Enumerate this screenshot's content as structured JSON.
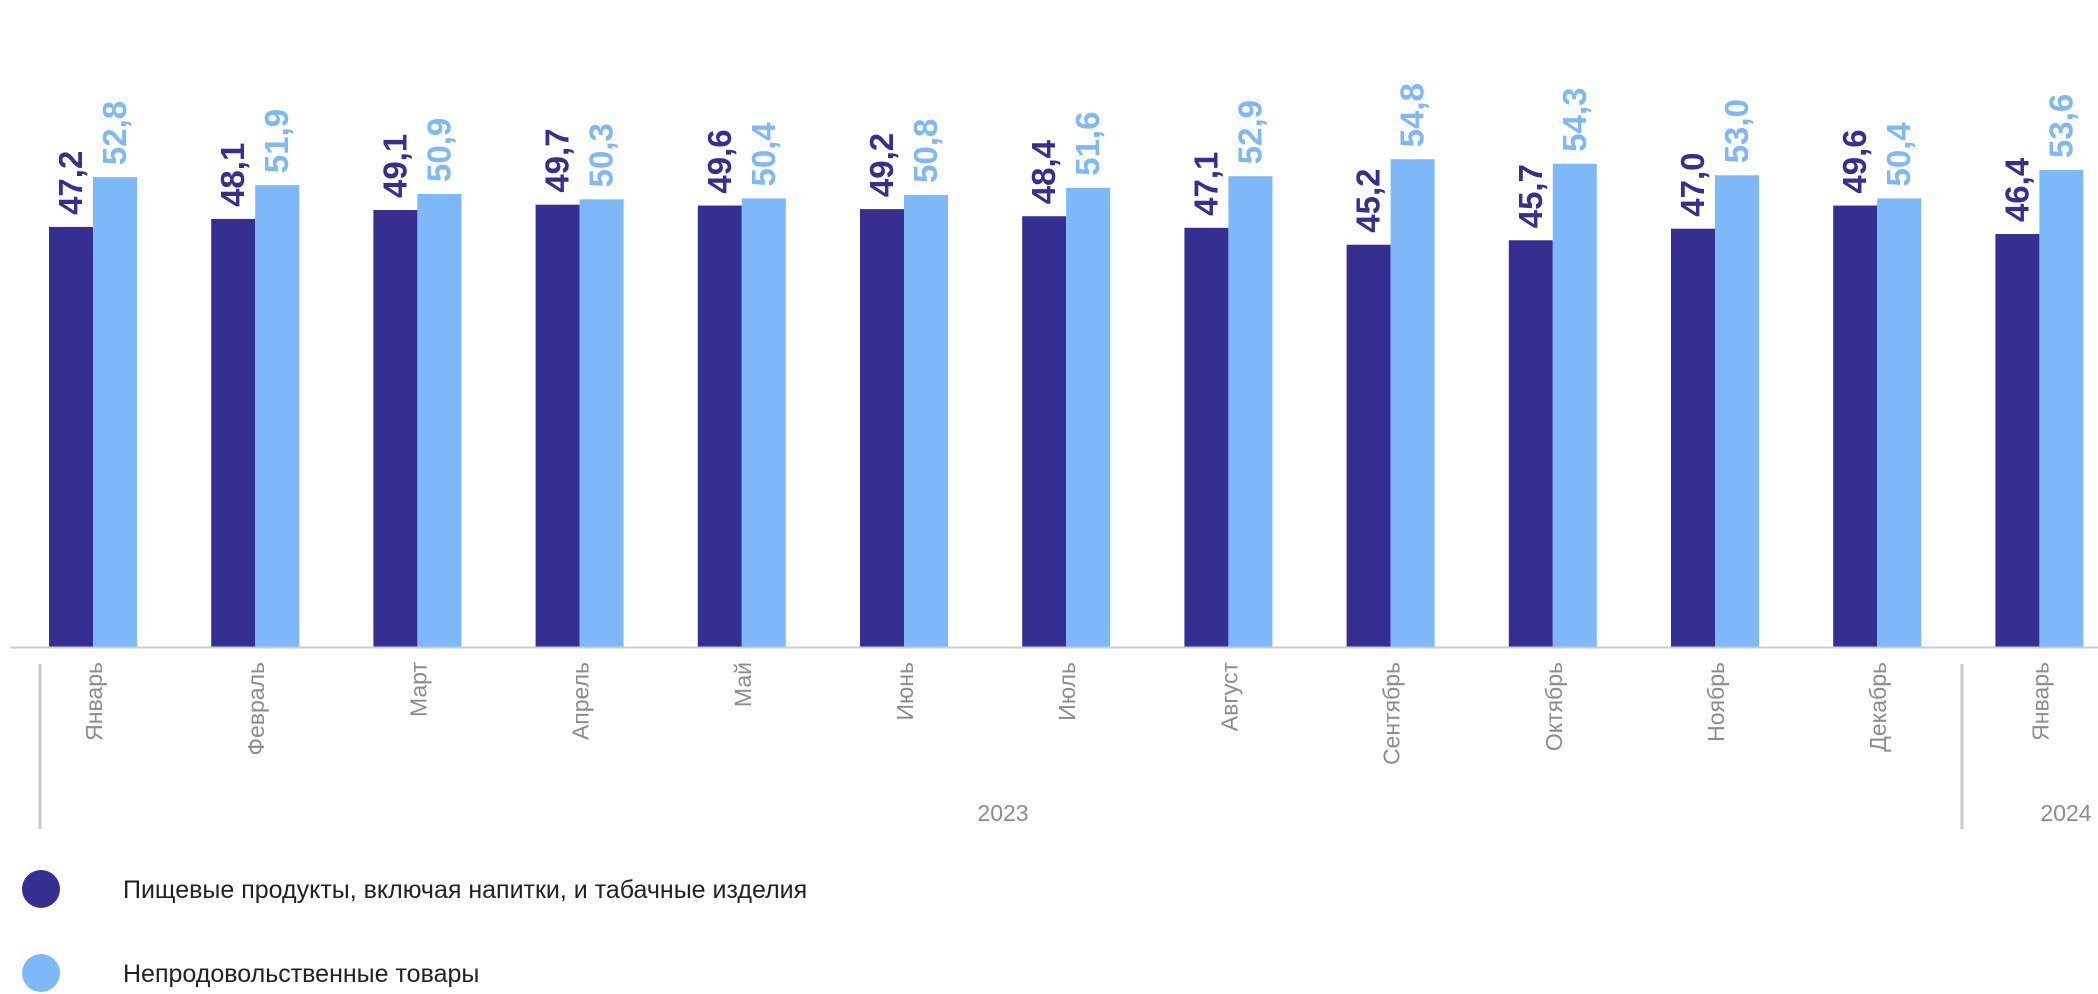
{
  "chart_data": {
    "type": "bar",
    "categories": [
      "Январь",
      "Февраль",
      "Март",
      "Апрель",
      "Май",
      "Июнь",
      "Июль",
      "Август",
      "Сентябрь",
      "Октябрь",
      "Ноябрь",
      "Декабрь",
      "Январь"
    ],
    "year_groups": [
      {
        "label": "2023",
        "from": 0,
        "to": 11
      },
      {
        "label": "2024",
        "from": 12,
        "to": 12
      }
    ],
    "series": [
      {
        "name": "Пищевые продукты, включая напитки, и табачные изделия",
        "color": "#352f91",
        "values": [
          47.2,
          48.1,
          49.1,
          49.7,
          49.6,
          49.2,
          48.4,
          47.1,
          45.2,
          45.7,
          47.0,
          49.6,
          46.4
        ],
        "labels": [
          "47,2",
          "48,1",
          "49,1",
          "49,7",
          "49,6",
          "49,2",
          "48,4",
          "47,1",
          "45,2",
          "45,7",
          "47,0",
          "49,6",
          "46,4"
        ]
      },
      {
        "name": "Непродовольственные товары",
        "color": "#7db8f8",
        "values": [
          52.8,
          51.9,
          50.9,
          50.3,
          50.4,
          50.8,
          51.6,
          52.9,
          54.8,
          54.3,
          53.0,
          50.4,
          53.6
        ],
        "labels": [
          "52,8",
          "51,9",
          "50,9",
          "50,3",
          "50,4",
          "50,8",
          "51,6",
          "52,9",
          "54,8",
          "54,3",
          "53,0",
          "50,4",
          "53,6"
        ]
      }
    ],
    "ylim": [
      0,
      65
    ],
    "grid": false,
    "legend_position": "bottom-left",
    "category_label_color": "#8c8c8c",
    "axis_color": "#cccccc",
    "separator_color": "#c8c8c8"
  }
}
